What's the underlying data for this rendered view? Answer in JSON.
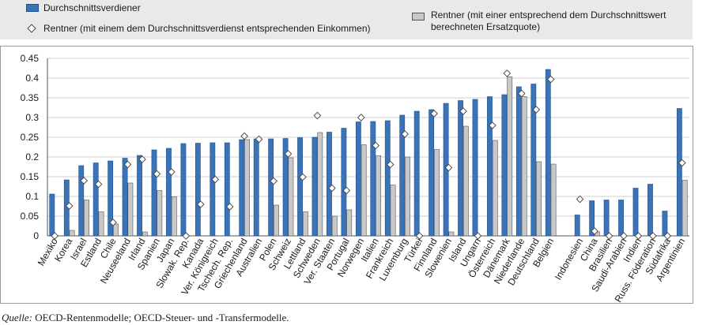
{
  "colors": {
    "earner": "#3b73b9",
    "earner_edge": "#1f4f8a",
    "retiree": "#c8c8c8",
    "retiree_edge": "#555555",
    "legend_bg": "#e9e9e9",
    "grid": "#cfcfcf"
  },
  "source": {
    "label": "Quelle:",
    "text": " OECD-Rentenmodelle; OECD-Steuer- und -Transfermodelle."
  },
  "chart_data": {
    "type": "bar",
    "title": "",
    "xlabel": "",
    "ylabel": "",
    "ylim": [
      0,
      0.45
    ],
    "yticks": [
      "0",
      "0.05",
      "0.1",
      "0.15",
      "0.2",
      "0.25",
      "0.3",
      "0.35",
      "0.4",
      "0.45"
    ],
    "grid": true,
    "legend_position": "top",
    "categories": [
      "Mexiko",
      "Korea",
      "Israel",
      "Estland",
      "Chile",
      "Neuseeland",
      "Irland",
      "Spanien",
      "Japan",
      "Slowak. Rep.",
      "Kanada",
      "Ver. Königreich",
      "Tschech. Rep.",
      "Griechenland",
      "Australien",
      "Polen",
      "Schweiz",
      "Lettland",
      "Schweden",
      "Ver. Staaten",
      "Portugal",
      "Norwegen",
      "Italien",
      "Frankreich",
      "Luxemburg",
      "Türkei",
      "Finnland",
      "Slowenien",
      "Island",
      "Ungarn",
      "Österreich",
      "Dänemark",
      "Niederlande",
      "Deutschland",
      "Belgien",
      "",
      "Indonesien",
      "China",
      "Brasilien",
      "Saudi-Arabien",
      "Indien",
      "Russ. Föderation",
      "Südafrika",
      "Argentinien"
    ],
    "series": [
      {
        "name": "Durchschnittsverdiener",
        "marker": "bar",
        "values": [
          0.106,
          0.142,
          0.178,
          0.185,
          0.19,
          0.197,
          0.204,
          0.218,
          0.222,
          0.234,
          0.235,
          0.236,
          0.236,
          0.244,
          0.246,
          0.246,
          0.247,
          0.249,
          0.25,
          0.263,
          0.273,
          0.289,
          0.29,
          0.292,
          0.306,
          0.316,
          0.32,
          0.336,
          0.343,
          0.346,
          0.353,
          0.358,
          0.378,
          0.385,
          0.422,
          null,
          0.053,
          0.089,
          0.091,
          0.091,
          0.121,
          0.131,
          0.063,
          0.323
        ]
      },
      {
        "name": "Rentner (mit einer entsprechend dem Durchschnittswert berechneten Ersatzquote)",
        "marker": "bar",
        "values": [
          0.0,
          0.014,
          0.091,
          0.061,
          0.03,
          0.134,
          0.01,
          0.115,
          0.099,
          0.0,
          0.0,
          0.0,
          0.0,
          0.244,
          0.0,
          0.078,
          0.198,
          0.061,
          0.262,
          0.05,
          0.066,
          0.231,
          0.203,
          0.129,
          0.2,
          0.0,
          0.219,
          0.01,
          0.278,
          0.0,
          0.242,
          0.403,
          0.353,
          0.188,
          0.182,
          null,
          0.0,
          0.01,
          0.0,
          0.0,
          0.0,
          0.0,
          0.0,
          0.141
        ]
      },
      {
        "name": "Rentner (mit einem dem Durchschnittsverdienst entsprechenden Einkommen)",
        "marker": "diamond",
        "values": [
          0.0,
          0.076,
          0.14,
          0.131,
          0.034,
          0.181,
          0.194,
          0.157,
          0.162,
          0.0,
          0.08,
          0.143,
          0.074,
          0.253,
          0.245,
          0.139,
          0.208,
          0.149,
          0.305,
          0.121,
          0.115,
          0.3,
          0.229,
          0.181,
          0.258,
          0.0,
          0.31,
          0.173,
          0.316,
          0.0,
          0.28,
          0.412,
          0.361,
          0.32,
          0.397,
          null,
          0.093,
          0.012,
          0.0,
          0.0,
          0.0,
          0.0,
          0.0,
          0.185
        ]
      }
    ]
  }
}
